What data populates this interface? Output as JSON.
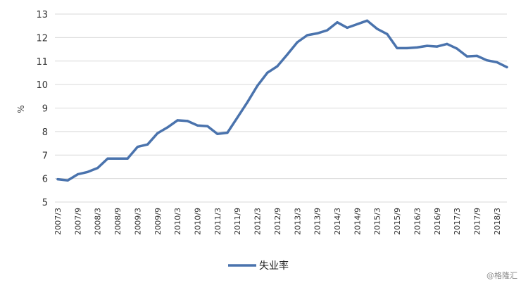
{
  "chart_data": {
    "type": "line",
    "ylabel": "%",
    "ylim": [
      5,
      13
    ],
    "yticks": [
      "5",
      "6",
      "7",
      "8",
      "9",
      "10",
      "11",
      "12",
      "13"
    ],
    "grid": true,
    "legend_position": "bottom-center",
    "x_tick_labels": [
      "2007/3",
      "2007/9",
      "2008/3",
      "2008/9",
      "2009/3",
      "2009/9",
      "2010/3",
      "2010/9",
      "2011/3",
      "2011/9",
      "2012/3",
      "2012/9",
      "2013/3",
      "2013/9",
      "2014/3",
      "2014/9",
      "2015/3",
      "2015/9",
      "2016/3",
      "2016/9",
      "2017/3",
      "2017/9",
      "2018/3"
    ],
    "x": [
      "2007/3",
      "2007/6",
      "2007/9",
      "2007/12",
      "2008/3",
      "2008/6",
      "2008/9",
      "2008/12",
      "2009/3",
      "2009/6",
      "2009/9",
      "2009/12",
      "2010/3",
      "2010/6",
      "2010/9",
      "2010/12",
      "2011/3",
      "2011/6",
      "2011/9",
      "2011/12",
      "2012/3",
      "2012/6",
      "2012/9",
      "2012/12",
      "2013/3",
      "2013/6",
      "2013/9",
      "2013/12",
      "2014/3",
      "2014/6",
      "2014/9",
      "2014/12",
      "2015/3",
      "2015/6",
      "2015/9",
      "2015/12",
      "2016/3",
      "2016/6",
      "2016/9",
      "2016/12",
      "2017/3",
      "2017/6",
      "2017/9",
      "2017/12",
      "2018/3",
      "2018/6"
    ],
    "series": [
      {
        "name": "失业率",
        "color": "#4a73ad",
        "values": [
          5.97,
          5.92,
          6.18,
          6.28,
          6.45,
          6.85,
          6.85,
          6.85,
          7.35,
          7.45,
          7.93,
          8.18,
          8.48,
          8.45,
          8.26,
          8.23,
          7.9,
          7.95,
          8.6,
          9.25,
          9.95,
          10.5,
          10.78,
          11.28,
          11.8,
          12.1,
          12.18,
          12.31,
          12.65,
          12.42,
          12.57,
          12.72,
          12.37,
          12.15,
          11.55,
          11.55,
          11.58,
          11.65,
          11.62,
          11.73,
          11.53,
          11.2,
          11.22,
          11.03,
          10.95,
          10.74
        ]
      }
    ]
  },
  "watermark": "@格隆汇"
}
